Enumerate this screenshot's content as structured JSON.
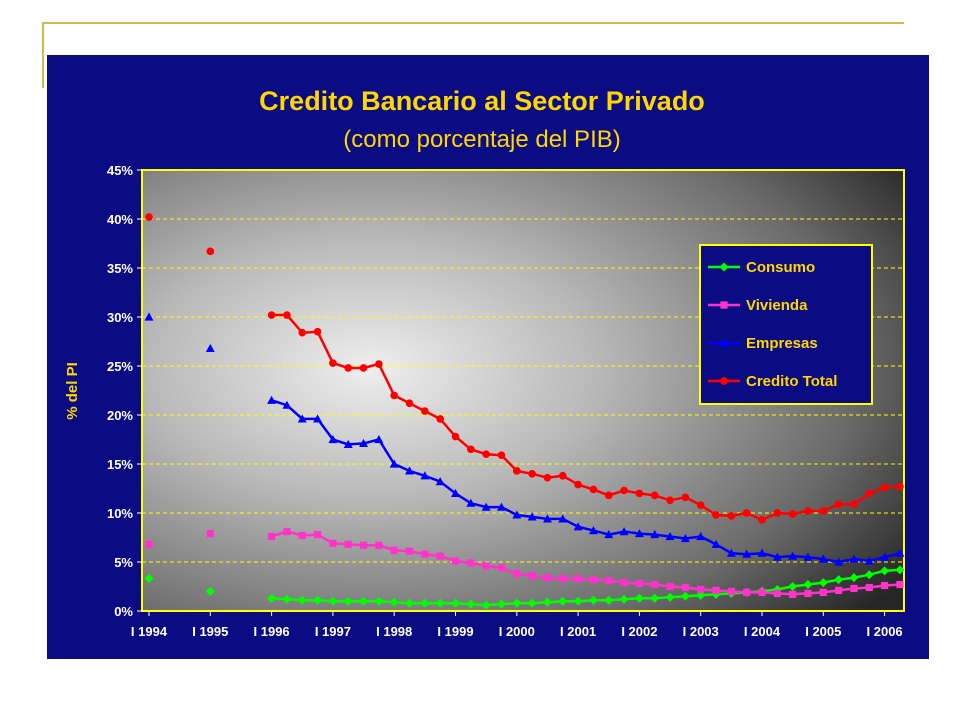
{
  "chart_data": {
    "type": "line",
    "title": "Credito Bancario al Sector Privado",
    "subtitle": "(como porcentaje del PIB)",
    "ylabel": "% del PI",
    "xlabel": "",
    "ylim": [
      0,
      45
    ],
    "y_ticks": [
      "0%",
      "5%",
      "10%",
      "15%",
      "20%",
      "25%",
      "30%",
      "35%",
      "40%",
      "45%"
    ],
    "x_ticks": [
      "I 1994",
      "I 1995",
      "I 1996",
      "I 1997",
      "I 1998",
      "I 1999",
      "I 2000",
      "I 2001",
      "I 2002",
      "I 2003",
      "I 2004",
      "I 2005",
      "I 2006"
    ],
    "x_range": [
      0,
      12.3
    ],
    "grid": "horizontal dashed",
    "legend_position": "right",
    "colors": {
      "background": "#0b0c84",
      "text": "#ffd700",
      "plot_border": "#ffff00",
      "grid": "#ffff00"
    },
    "series": [
      {
        "name": "Consumo",
        "color": "#00ff00",
        "marker": "diamond",
        "isolated": [
          [
            0,
            3.3
          ],
          [
            1,
            2.0
          ]
        ],
        "x": [
          2.0,
          2.25,
          2.5,
          2.75,
          3.0,
          3.25,
          3.5,
          3.75,
          4.0,
          4.25,
          4.5,
          4.75,
          5.0,
          5.25,
          5.5,
          5.75,
          6.0,
          6.25,
          6.5,
          6.75,
          7.0,
          7.25,
          7.5,
          7.75,
          8.0,
          8.25,
          8.5,
          8.75,
          9.0,
          9.25,
          9.5,
          9.75,
          10.0,
          10.25,
          10.5,
          10.75,
          11.0,
          11.25,
          11.5,
          11.75,
          12.0,
          12.25
        ],
        "values": [
          1.3,
          1.2,
          1.1,
          1.1,
          1.0,
          1.0,
          1.0,
          1.0,
          0.9,
          0.8,
          0.8,
          0.8,
          0.8,
          0.7,
          0.6,
          0.7,
          0.8,
          0.8,
          0.9,
          1.0,
          1.0,
          1.1,
          1.1,
          1.2,
          1.3,
          1.3,
          1.4,
          1.5,
          1.6,
          1.7,
          1.8,
          1.9,
          2.0,
          2.2,
          2.5,
          2.7,
          2.9,
          3.2,
          3.4,
          3.7,
          4.1,
          4.2
        ]
      },
      {
        "name": "Vivienda",
        "color": "#ff33cc",
        "marker": "square",
        "isolated": [
          [
            0,
            6.8
          ],
          [
            1,
            7.9
          ]
        ],
        "x": [
          2.0,
          2.25,
          2.5,
          2.75,
          3.0,
          3.25,
          3.5,
          3.75,
          4.0,
          4.25,
          4.5,
          4.75,
          5.0,
          5.25,
          5.5,
          5.75,
          6.0,
          6.25,
          6.5,
          6.75,
          7.0,
          7.25,
          7.5,
          7.75,
          8.0,
          8.25,
          8.5,
          8.75,
          9.0,
          9.25,
          9.5,
          9.75,
          10.0,
          10.25,
          10.5,
          10.75,
          11.0,
          11.25,
          11.5,
          11.75,
          12.0,
          12.25
        ],
        "values": [
          7.6,
          8.1,
          7.7,
          7.8,
          6.9,
          6.8,
          6.7,
          6.7,
          6.2,
          6.1,
          5.8,
          5.6,
          5.1,
          4.9,
          4.6,
          4.4,
          3.8,
          3.6,
          3.4,
          3.3,
          3.3,
          3.2,
          3.1,
          2.9,
          2.8,
          2.7,
          2.5,
          2.4,
          2.2,
          2.1,
          2.0,
          1.9,
          1.9,
          1.8,
          1.7,
          1.8,
          1.9,
          2.1,
          2.3,
          2.4,
          2.6,
          2.7
        ]
      },
      {
        "name": "Empresas",
        "color": "#0000ff",
        "marker": "triangle",
        "isolated": [
          [
            0,
            30.0
          ],
          [
            1,
            26.8
          ]
        ],
        "x": [
          2.0,
          2.25,
          2.5,
          2.75,
          3.0,
          3.25,
          3.5,
          3.75,
          4.0,
          4.25,
          4.5,
          4.75,
          5.0,
          5.25,
          5.5,
          5.75,
          6.0,
          6.25,
          6.5,
          6.75,
          7.0,
          7.25,
          7.5,
          7.75,
          8.0,
          8.25,
          8.5,
          8.75,
          9.0,
          9.25,
          9.5,
          9.75,
          10.0,
          10.25,
          10.5,
          10.75,
          11.0,
          11.25,
          11.5,
          11.75,
          12.0,
          12.25
        ],
        "values": [
          21.5,
          21.0,
          19.6,
          19.6,
          17.5,
          17.0,
          17.1,
          17.5,
          15.0,
          14.3,
          13.8,
          13.2,
          12.0,
          11.0,
          10.6,
          10.6,
          9.8,
          9.6,
          9.4,
          9.4,
          8.6,
          8.2,
          7.8,
          8.1,
          7.9,
          7.8,
          7.6,
          7.4,
          7.6,
          6.8,
          5.9,
          5.8,
          5.9,
          5.5,
          5.6,
          5.5,
          5.3,
          5.0,
          5.3,
          5.1,
          5.5,
          5.9
        ]
      },
      {
        "name": "Credito Total",
        "color": "#ff0000",
        "marker": "circle",
        "isolated": [
          [
            0,
            40.2
          ],
          [
            1,
            36.7
          ]
        ],
        "x": [
          2.0,
          2.25,
          2.5,
          2.75,
          3.0,
          3.25,
          3.5,
          3.75,
          4.0,
          4.25,
          4.5,
          4.75,
          5.0,
          5.25,
          5.5,
          5.75,
          6.0,
          6.25,
          6.5,
          6.75,
          7.0,
          7.25,
          7.5,
          7.75,
          8.0,
          8.25,
          8.5,
          8.75,
          9.0,
          9.25,
          9.5,
          9.75,
          10.0,
          10.25,
          10.5,
          10.75,
          11.0,
          11.25,
          11.5,
          11.75,
          12.0,
          12.25
        ],
        "values": [
          30.2,
          30.2,
          28.4,
          28.5,
          25.3,
          24.8,
          24.8,
          25.2,
          22.0,
          21.2,
          20.4,
          19.6,
          17.8,
          16.5,
          16.0,
          15.9,
          14.3,
          14.0,
          13.6,
          13.8,
          12.9,
          12.4,
          11.8,
          12.3,
          12.0,
          11.8,
          11.3,
          11.6,
          10.8,
          9.8,
          9.7,
          10.0,
          9.3,
          10.0,
          9.9,
          10.2,
          10.2,
          10.9,
          10.9,
          12.0,
          12.6,
          12.7
        ]
      }
    ]
  }
}
